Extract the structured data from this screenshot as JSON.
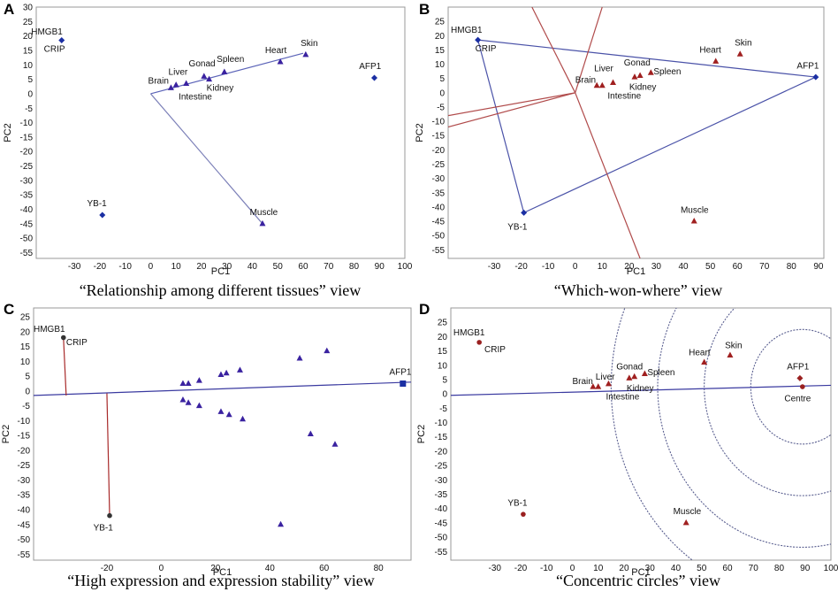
{
  "panels": [
    {
      "letter": "A",
      "caption": "“Relationship among different tissues” view",
      "xlabel": "PC1",
      "ylabel": "PC2",
      "xlim": [
        -45,
        100
      ],
      "ylim": [
        -57,
        30
      ],
      "xticks": [
        -30,
        -20,
        -10,
        0,
        10,
        20,
        30,
        40,
        50,
        60,
        70,
        80,
        90,
        100
      ],
      "yticks": [
        30,
        25,
        20,
        15,
        10,
        5,
        0,
        -5,
        -10,
        -15,
        -20,
        -25,
        -30,
        -35,
        -40,
        -45,
        -50,
        -55
      ],
      "lines": [
        {
          "x": [
            0,
            60
          ],
          "y": [
            0,
            14
          ],
          "color": "#5b63b8"
        },
        {
          "x": [
            0,
            44
          ],
          "y": [
            0,
            -45
          ],
          "color": "#7c80b8"
        }
      ],
      "circles": [],
      "points": [
        {
          "label": "HMGB1",
          "x": -35,
          "y": 18.5,
          "marker": "diamond",
          "color": "#1b2fa3",
          "lx": -47,
          "ly": 20.5
        },
        {
          "label": "CRIP",
          "x": -35,
          "y": 18.5,
          "marker": "none",
          "color": "#1b2fa3",
          "lx": -42,
          "ly": 14.5
        },
        {
          "label": "AFP1",
          "x": 88,
          "y": 5.5,
          "marker": "diamond",
          "color": "#1b2fa3",
          "lx": 82,
          "ly": 8.5
        },
        {
          "label": "YB-1",
          "x": -19,
          "y": -42,
          "marker": "diamond",
          "color": "#1b2fa3",
          "lx": -25,
          "ly": -39
        },
        {
          "label": "Brain",
          "x": 8,
          "y": 2,
          "marker": "triangle",
          "color": "#3a22a0",
          "lx": -1,
          "ly": 3.5
        },
        {
          "label": "Liver",
          "x": 10,
          "y": 3,
          "marker": "triangle",
          "color": "#3a22a0",
          "lx": 7,
          "ly": 6.5
        },
        {
          "label": "Gonad",
          "x": 21,
          "y": 6,
          "marker": "triangle",
          "color": "#3a22a0",
          "lx": 15,
          "ly": 9.5
        },
        {
          "label": "Spleen",
          "x": 29,
          "y": 7.5,
          "marker": "triangle",
          "color": "#3a22a0",
          "lx": 26,
          "ly": 11
        },
        {
          "label": "Kidney",
          "x": 23,
          "y": 5,
          "marker": "triangle",
          "color": "#3a22a0",
          "lx": 22,
          "ly": 1
        },
        {
          "label": "Intestine",
          "x": 14,
          "y": 3.5,
          "marker": "triangle",
          "color": "#3a22a0",
          "lx": 11,
          "ly": -2
        },
        {
          "label": "Heart",
          "x": 51,
          "y": 11,
          "marker": "triangle",
          "color": "#3a22a0",
          "lx": 45,
          "ly": 14
        },
        {
          "label": "Skin",
          "x": 61,
          "y": 13.5,
          "marker": "triangle",
          "color": "#3a22a0",
          "lx": 59,
          "ly": 16.5
        },
        {
          "label": "Muscle",
          "x": 44,
          "y": -45,
          "marker": "triangle",
          "color": "#3a22a0",
          "lx": 39,
          "ly": -42
        }
      ]
    },
    {
      "letter": "B",
      "caption": "“Which-won-where” view",
      "xlabel": "PC1",
      "ylabel": "PC2",
      "xlim": [
        -47,
        92
      ],
      "ylim": [
        -58,
        30
      ],
      "xticks": [
        -30,
        -20,
        -10,
        0,
        10,
        20,
        30,
        40,
        50,
        60,
        70,
        80,
        90
      ],
      "yticks": [
        25,
        20,
        15,
        10,
        5,
        0,
        -5,
        -10,
        -15,
        -20,
        -25,
        -30,
        -35,
        -40,
        -45,
        -50,
        -55
      ],
      "lines": [
        {
          "x": [
            -36,
            89
          ],
          "y": [
            18.5,
            5.5
          ],
          "color": "#4a52a8"
        },
        {
          "x": [
            89,
            -19
          ],
          "y": [
            5.5,
            -42
          ],
          "color": "#4a52a8"
        },
        {
          "x": [
            -19,
            -36
          ],
          "y": [
            -42,
            18.5
          ],
          "color": "#4a52a8"
        },
        {
          "x": [
            0,
            10
          ],
          "y": [
            0,
            30
          ],
          "color": "#b04a4a"
        },
        {
          "x": [
            0,
            24
          ],
          "y": [
            0,
            -58
          ],
          "color": "#b04a4a"
        },
        {
          "x": [
            0,
            -47
          ],
          "y": [
            0,
            -8
          ],
          "color": "#b04a4a"
        },
        {
          "x": [
            0,
            -47
          ],
          "y": [
            0,
            -12
          ],
          "color": "#b04a4a"
        },
        {
          "x": [
            0,
            -16
          ],
          "y": [
            0,
            30
          ],
          "color": "#b04a4a"
        }
      ],
      "circles": [],
      "points": [
        {
          "label": "HMGB1",
          "x": -36,
          "y": 18.5,
          "marker": "diamond",
          "color": "#1b2fa3",
          "lx": -46,
          "ly": 21
        },
        {
          "label": "CRIP",
          "x": -36,
          "y": 18.5,
          "marker": "none",
          "color": "#1b2fa3",
          "lx": -37,
          "ly": 14.5
        },
        {
          "label": "AFP1",
          "x": 89,
          "y": 5.5,
          "marker": "diamond",
          "color": "#1b2fa3",
          "lx": 82,
          "ly": 8.5
        },
        {
          "label": "YB-1",
          "x": -19,
          "y": -42,
          "marker": "diamond",
          "color": "#1b2fa3",
          "lx": -25,
          "ly": -48
        },
        {
          "label": "Brain",
          "x": 8,
          "y": 2.5,
          "marker": "triangle",
          "color": "#a02020",
          "lx": 0,
          "ly": 3.5
        },
        {
          "label": "Liver",
          "x": 10,
          "y": 2.5,
          "marker": "triangle",
          "color": "#a02020",
          "lx": 7,
          "ly": 7.5
        },
        {
          "label": "Gonad",
          "x": 22,
          "y": 5.5,
          "marker": "triangle",
          "color": "#a02020",
          "lx": 18,
          "ly": 9.5
        },
        {
          "label": "Spleen",
          "x": 28,
          "y": 7,
          "marker": "triangle",
          "color": "#a02020",
          "lx": 29,
          "ly": 6.5
        },
        {
          "label": "Kidney",
          "x": 24,
          "y": 6,
          "marker": "triangle",
          "color": "#a02020",
          "lx": 20,
          "ly": 1
        },
        {
          "label": "Intestine",
          "x": 14,
          "y": 3.5,
          "marker": "triangle",
          "color": "#a02020",
          "lx": 12,
          "ly": -2
        },
        {
          "label": "Heart",
          "x": 52,
          "y": 11,
          "marker": "triangle",
          "color": "#a02020",
          "lx": 46,
          "ly": 14
        },
        {
          "label": "Skin",
          "x": 61,
          "y": 13.5,
          "marker": "triangle",
          "color": "#a02020",
          "lx": 59,
          "ly": 16.5
        },
        {
          "label": "Muscle",
          "x": 44,
          "y": -45,
          "marker": "triangle",
          "color": "#a02020",
          "lx": 39,
          "ly": -42
        }
      ]
    },
    {
      "letter": "C",
      "caption": "“High expression and expression stability” view",
      "xlabel": "PC1",
      "ylabel": "PC2",
      "xlim": [
        -47,
        92
      ],
      "ylim": [
        -57,
        28
      ],
      "xticks": [
        -20,
        0,
        20,
        40,
        60,
        80
      ],
      "yticks": [
        25,
        20,
        15,
        10,
        5,
        0,
        -5,
        -10,
        -15,
        -20,
        -25,
        -30,
        -35,
        -40,
        -45,
        -50,
        -55
      ],
      "lines": [
        {
          "x": [
            -47,
            92
          ],
          "y": [
            -1.5,
            3
          ],
          "color": "#3a3aa0"
        },
        {
          "x": [
            -36,
            -35
          ],
          "y": [
            18,
            -1.5
          ],
          "color": "#a82a2a"
        },
        {
          "x": [
            -20,
            -19
          ],
          "y": [
            -0.8,
            -42
          ],
          "color": "#a82a2a"
        }
      ],
      "circles": [],
      "points": [
        {
          "label": "HMGB1",
          "x": -36,
          "y": 18,
          "marker": "dot",
          "color": "#333333",
          "lx": -47,
          "ly": 20
        },
        {
          "label": "CRIP",
          "x": -36,
          "y": 18,
          "marker": "none",
          "color": "#333333",
          "lx": -35,
          "ly": 15.5
        },
        {
          "label": "AFP1",
          "x": 89,
          "y": 2.5,
          "marker": "square",
          "color": "#1b2fa3",
          "lx": 84,
          "ly": 5.5
        },
        {
          "label": "YB-1",
          "x": -19,
          "y": -42,
          "marker": "dot",
          "color": "#333333",
          "lx": -25,
          "ly": -47
        },
        {
          "label": "",
          "x": 8,
          "y": 2.5,
          "marker": "triangle",
          "color": "#3a22a0",
          "lx": 0,
          "ly": 0
        },
        {
          "label": "",
          "x": 10,
          "y": 2.5,
          "marker": "triangle",
          "color": "#3a22a0",
          "lx": 0,
          "ly": 0
        },
        {
          "label": "",
          "x": 14,
          "y": 3.5,
          "marker": "triangle",
          "color": "#3a22a0",
          "lx": 0,
          "ly": 0
        },
        {
          "label": "",
          "x": 22,
          "y": 5.5,
          "marker": "triangle",
          "color": "#3a22a0",
          "lx": 0,
          "ly": 0
        },
        {
          "label": "",
          "x": 24,
          "y": 6,
          "marker": "triangle",
          "color": "#3a22a0",
          "lx": 0,
          "ly": 0
        },
        {
          "label": "",
          "x": 29,
          "y": 7,
          "marker": "triangle",
          "color": "#3a22a0",
          "lx": 0,
          "ly": 0
        },
        {
          "label": "",
          "x": 51,
          "y": 11,
          "marker": "triangle",
          "color": "#3a22a0",
          "lx": 0,
          "ly": 0
        },
        {
          "label": "",
          "x": 61,
          "y": 13.5,
          "marker": "triangle",
          "color": "#3a22a0",
          "lx": 0,
          "ly": 0
        },
        {
          "label": "",
          "x": 8,
          "y": -3,
          "marker": "triangle",
          "color": "#3a22a0",
          "lx": 0,
          "ly": 0
        },
        {
          "label": "",
          "x": 10,
          "y": -4,
          "marker": "triangle",
          "color": "#3a22a0",
          "lx": 0,
          "ly": 0
        },
        {
          "label": "",
          "x": 14,
          "y": -5,
          "marker": "triangle",
          "color": "#3a22a0",
          "lx": 0,
          "ly": 0
        },
        {
          "label": "",
          "x": 22,
          "y": -7,
          "marker": "triangle",
          "color": "#3a22a0",
          "lx": 0,
          "ly": 0
        },
        {
          "label": "",
          "x": 25,
          "y": -8,
          "marker": "triangle",
          "color": "#3a22a0",
          "lx": 0,
          "ly": 0
        },
        {
          "label": "",
          "x": 30,
          "y": -9.5,
          "marker": "triangle",
          "color": "#3a22a0",
          "lx": 0,
          "ly": 0
        },
        {
          "label": "",
          "x": 55,
          "y": -14.5,
          "marker": "triangle",
          "color": "#3a22a0",
          "lx": 0,
          "ly": 0
        },
        {
          "label": "",
          "x": 64,
          "y": -18,
          "marker": "triangle",
          "color": "#3a22a0",
          "lx": 0,
          "ly": 0
        },
        {
          "label": "",
          "x": 44,
          "y": -45,
          "marker": "triangle",
          "color": "#3a22a0",
          "lx": 0,
          "ly": 0
        }
      ]
    },
    {
      "letter": "D",
      "caption": "“Concentric circles” view",
      "xlabel": "PC1",
      "ylabel": "PC2",
      "xlim": [
        -47,
        100
      ],
      "ylim": [
        -58,
        30
      ],
      "xticks": [
        -30,
        -20,
        -10,
        0,
        10,
        20,
        30,
        40,
        50,
        60,
        70,
        80,
        90,
        100
      ],
      "yticks": [
        25,
        20,
        15,
        10,
        5,
        0,
        -5,
        -10,
        -15,
        -20,
        -25,
        -30,
        -35,
        -40,
        -45,
        -50,
        -55
      ],
      "lines": [
        {
          "x": [
            -47,
            100
          ],
          "y": [
            -0.5,
            3
          ],
          "color": "#3a3aa0"
        }
      ],
      "circles": [
        {
          "cx": 89,
          "cy": 2.5,
          "r": [
            20,
            38,
            56,
            74
          ]
        }
      ],
      "points": [
        {
          "label": "HMGB1",
          "x": -36,
          "y": 18,
          "marker": "dot",
          "color": "#9a2020",
          "lx": -46,
          "ly": 20.5
        },
        {
          "label": "CRIP",
          "x": -36,
          "y": 18,
          "marker": "none",
          "color": "#9a2020",
          "lx": -34,
          "ly": 14.5
        },
        {
          "label": "AFP1",
          "x": 88,
          "y": 5.5,
          "marker": "diamond",
          "color": "#9a2020",
          "lx": 83,
          "ly": 8.5
        },
        {
          "label": "Centre",
          "x": 89,
          "y": 2.5,
          "marker": "dot",
          "color": "#9a2020",
          "lx": 82,
          "ly": -2.5
        },
        {
          "label": "YB-1",
          "x": -19,
          "y": -42,
          "marker": "dot",
          "color": "#9a2020",
          "lx": -25,
          "ly": -39
        },
        {
          "label": "Brain",
          "x": 8,
          "y": 2.5,
          "marker": "triangle",
          "color": "#a02020",
          "lx": 0,
          "ly": 3.5
        },
        {
          "label": "Liver",
          "x": 10,
          "y": 2.5,
          "marker": "triangle",
          "color": "#a02020",
          "lx": 9,
          "ly": 5
        },
        {
          "label": "Gonad",
          "x": 22,
          "y": 5.5,
          "marker": "triangle",
          "color": "#a02020",
          "lx": 17,
          "ly": 8.5
        },
        {
          "label": "Spleen",
          "x": 28,
          "y": 7,
          "marker": "triangle",
          "color": "#a02020",
          "lx": 29,
          "ly": 6.5
        },
        {
          "label": "Kidney",
          "x": 24,
          "y": 6,
          "marker": "triangle",
          "color": "#a02020",
          "lx": 21,
          "ly": 1
        },
        {
          "label": "Intestine",
          "x": 14,
          "y": 3.5,
          "marker": "triangle",
          "color": "#a02020",
          "lx": 13,
          "ly": -2
        },
        {
          "label": "Heart",
          "x": 51,
          "y": 11,
          "marker": "triangle",
          "color": "#a02020",
          "lx": 45,
          "ly": 13.5
        },
        {
          "label": "Skin",
          "x": 61,
          "y": 13.5,
          "marker": "triangle",
          "color": "#a02020",
          "lx": 59,
          "ly": 16
        },
        {
          "label": "Muscle",
          "x": 44,
          "y": -45,
          "marker": "triangle",
          "color": "#a02020",
          "lx": 39,
          "ly": -42
        }
      ]
    }
  ]
}
